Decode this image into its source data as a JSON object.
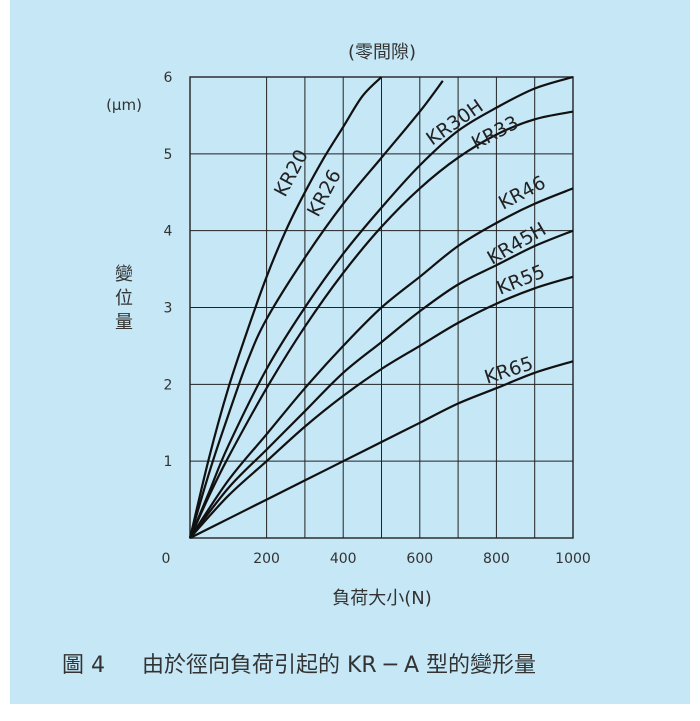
{
  "colors": {
    "background": "#c6e7f6",
    "line": "#111111",
    "grid": "#222222",
    "text": "#333333"
  },
  "figure": {
    "caption_number": "圖 4",
    "caption_text": "由於徑向負荷引起的 KR ─ A 型的變形量"
  },
  "chart_data": {
    "type": "line",
    "title": "(零間隙)",
    "xlabel": "負荷大小(N)",
    "ylabel": "變位量",
    "y_unit": "(μm)",
    "xlim": [
      0,
      1000
    ],
    "ylim": [
      0,
      6
    ],
    "x_ticks": [
      "0",
      "200",
      "400",
      "600",
      "800",
      "1000"
    ],
    "y_ticks": [
      "1",
      "2",
      "3",
      "4",
      "5",
      "6"
    ],
    "grid": true,
    "legend": "inline labels on curves",
    "series": [
      {
        "name": "KR20",
        "points": [
          [
            0,
            0
          ],
          [
            50,
            1.05
          ],
          [
            100,
            1.95
          ],
          [
            150,
            2.7
          ],
          [
            200,
            3.4
          ],
          [
            250,
            4.0
          ],
          [
            300,
            4.5
          ],
          [
            350,
            4.95
          ],
          [
            400,
            5.35
          ],
          [
            450,
            5.75
          ],
          [
            500,
            6.0
          ]
        ]
      },
      {
        "name": "KR26",
        "points": [
          [
            0,
            0
          ],
          [
            50,
            0.85
          ],
          [
            100,
            1.6
          ],
          [
            150,
            2.3
          ],
          [
            200,
            2.85
          ],
          [
            300,
            3.65
          ],
          [
            400,
            4.35
          ],
          [
            500,
            4.95
          ],
          [
            600,
            5.55
          ],
          [
            660,
            5.95
          ]
        ]
      },
      {
        "name": "KR30H",
        "points": [
          [
            0,
            0
          ],
          [
            50,
            0.6
          ],
          [
            100,
            1.2
          ],
          [
            200,
            2.2
          ],
          [
            300,
            3.0
          ],
          [
            400,
            3.7
          ],
          [
            500,
            4.3
          ],
          [
            600,
            4.85
          ],
          [
            700,
            5.3
          ],
          [
            800,
            5.6
          ],
          [
            900,
            5.85
          ],
          [
            1000,
            6.0
          ]
        ]
      },
      {
        "name": "KR33",
        "points": [
          [
            0,
            0
          ],
          [
            50,
            0.55
          ],
          [
            100,
            1.05
          ],
          [
            200,
            1.95
          ],
          [
            300,
            2.75
          ],
          [
            400,
            3.45
          ],
          [
            500,
            4.05
          ],
          [
            600,
            4.55
          ],
          [
            700,
            4.95
          ],
          [
            800,
            5.25
          ],
          [
            900,
            5.45
          ],
          [
            1000,
            5.55
          ]
        ]
      },
      {
        "name": "KR46",
        "points": [
          [
            0,
            0
          ],
          [
            100,
            0.75
          ],
          [
            200,
            1.35
          ],
          [
            300,
            1.95
          ],
          [
            400,
            2.5
          ],
          [
            500,
            3.0
          ],
          [
            600,
            3.4
          ],
          [
            700,
            3.8
          ],
          [
            800,
            4.1
          ],
          [
            900,
            4.35
          ],
          [
            1000,
            4.55
          ]
        ]
      },
      {
        "name": "KR45H",
        "points": [
          [
            0,
            0
          ],
          [
            100,
            0.65
          ],
          [
            200,
            1.15
          ],
          [
            300,
            1.65
          ],
          [
            400,
            2.15
          ],
          [
            500,
            2.55
          ],
          [
            600,
            2.95
          ],
          [
            700,
            3.3
          ],
          [
            800,
            3.55
          ],
          [
            900,
            3.8
          ],
          [
            1000,
            4.0
          ]
        ]
      },
      {
        "name": "KR55",
        "points": [
          [
            0,
            0
          ],
          [
            100,
            0.55
          ],
          [
            200,
            1.0
          ],
          [
            300,
            1.45
          ],
          [
            400,
            1.85
          ],
          [
            500,
            2.2
          ],
          [
            600,
            2.5
          ],
          [
            700,
            2.8
          ],
          [
            800,
            3.05
          ],
          [
            900,
            3.25
          ],
          [
            1000,
            3.4
          ]
        ]
      },
      {
        "name": "KR65",
        "points": [
          [
            0,
            0
          ],
          [
            100,
            0.25
          ],
          [
            200,
            0.5
          ],
          [
            300,
            0.75
          ],
          [
            400,
            1.0
          ],
          [
            500,
            1.25
          ],
          [
            600,
            1.5
          ],
          [
            700,
            1.75
          ],
          [
            800,
            1.95
          ],
          [
            900,
            2.15
          ],
          [
            1000,
            2.3
          ]
        ]
      }
    ]
  }
}
